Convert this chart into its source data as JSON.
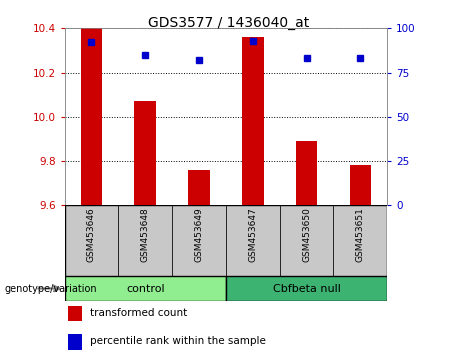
{
  "title": "GDS3577 / 1436040_at",
  "samples": [
    "GSM453646",
    "GSM453648",
    "GSM453649",
    "GSM453647",
    "GSM453650",
    "GSM453651"
  ],
  "red_values": [
    10.4,
    10.07,
    9.76,
    10.36,
    9.89,
    9.78
  ],
  "blue_values": [
    92,
    85,
    82,
    93,
    83,
    83
  ],
  "ylim_left": [
    9.6,
    10.4
  ],
  "ylim_right": [
    0,
    100
  ],
  "yticks_left": [
    9.6,
    9.8,
    10.0,
    10.2,
    10.4
  ],
  "yticks_right": [
    0,
    25,
    50,
    75,
    100
  ],
  "groups": [
    {
      "label": "control",
      "indices": [
        0,
        1,
        2
      ],
      "color": "#90EE90"
    },
    {
      "label": "Cbfbeta null",
      "indices": [
        3,
        4,
        5
      ],
      "color": "#3CB371"
    }
  ],
  "group_label": "genotype/variation",
  "legend_items": [
    {
      "color": "#CC0000",
      "label": "transformed count"
    },
    {
      "color": "#0000CC",
      "label": "percentile rank within the sample"
    }
  ],
  "bar_color": "#CC0000",
  "dot_color": "#0000CC",
  "bg_color": "#FFFFFF",
  "plot_bg": "#FFFFFF",
  "tick_color_left": "#CC0000",
  "tick_color_right": "#0000CC",
  "sample_bg": "#C8C8C8",
  "bar_width": 0.4
}
